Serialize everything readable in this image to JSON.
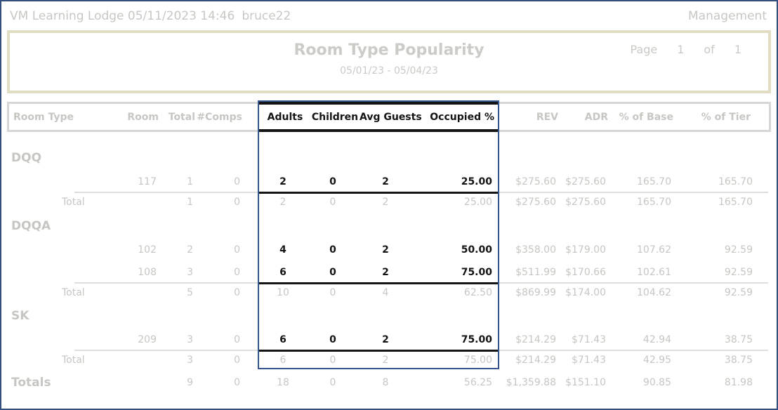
{
  "top_bar": {
    "property_and_time": "VM Learning Lodge 05/11/2023 14:46",
    "user": "bruce22",
    "menu": "Management"
  },
  "report_header": {
    "title": "Room Type Popularity",
    "date_range": "05/01/23 - 05/04/23",
    "page_label": "Page",
    "page_number": "1",
    "of_label": "of",
    "page_count": "1"
  },
  "colors": {
    "outer_border": "#31507E",
    "header_box_border": "#E0DDC3",
    "strip_border": "#D6D6D6",
    "muted_text": "#C6C6C2",
    "active_text": "#141414",
    "highlight_box_border": "#35538C"
  },
  "table": {
    "headers": {
      "room_type": "Room Type",
      "room": "Room",
      "total": "Total",
      "comps": "#Comps",
      "adults": "Adults",
      "children": "Children",
      "avg_guests": "Avg Guests",
      "occupied": "Occupied %",
      "rev": "REV",
      "adr": "ADR",
      "pct_base": "% of Base",
      "pct_tier": "% of Tier"
    },
    "highlighted_columns": [
      "Adults",
      "Children",
      "Avg Guests",
      "Occupied %"
    ],
    "groups": [
      {
        "name": "DQQ",
        "rows": [
          {
            "room": "117",
            "total": "1",
            "comps": "0",
            "adults": "2",
            "children": "0",
            "avg_guests": "2",
            "occupied": "25.00",
            "rev": "$275.60",
            "adr": "$275.60",
            "pct_base": "165.70",
            "pct_tier": "165.70"
          }
        ],
        "total": {
          "label": "Total",
          "total": "1",
          "comps": "0",
          "adults": "2",
          "children": "0",
          "avg_guests": "2",
          "occupied": "25.00",
          "rev": "$275.60",
          "adr": "$275.60",
          "pct_base": "165.70",
          "pct_tier": "165.70"
        }
      },
      {
        "name": "DQQA",
        "rows": [
          {
            "room": "102",
            "total": "2",
            "comps": "0",
            "adults": "4",
            "children": "0",
            "avg_guests": "2",
            "occupied": "50.00",
            "rev": "$358.00",
            "adr": "$179.00",
            "pct_base": "107.62",
            "pct_tier": "92.59"
          },
          {
            "room": "108",
            "total": "3",
            "comps": "0",
            "adults": "6",
            "children": "0",
            "avg_guests": "2",
            "occupied": "75.00",
            "rev": "$511.99",
            "adr": "$170.66",
            "pct_base": "102.61",
            "pct_tier": "92.59"
          }
        ],
        "total": {
          "label": "Total",
          "total": "5",
          "comps": "0",
          "adults": "10",
          "children": "0",
          "avg_guests": "4",
          "occupied": "62.50",
          "rev": "$869.99",
          "adr": "$174.00",
          "pct_base": "104.62",
          "pct_tier": "92.59"
        }
      },
      {
        "name": "SK",
        "rows": [
          {
            "room": "209",
            "total": "3",
            "comps": "0",
            "adults": "6",
            "children": "0",
            "avg_guests": "2",
            "occupied": "75.00",
            "rev": "$214.29",
            "adr": "$71.43",
            "pct_base": "42.94",
            "pct_tier": "38.75"
          }
        ],
        "total": {
          "label": "Total",
          "total": "3",
          "comps": "0",
          "adults": "6",
          "children": "0",
          "avg_guests": "2",
          "occupied": "75.00",
          "rev": "$214.29",
          "adr": "$71.43",
          "pct_base": "42.95",
          "pct_tier": "38.75"
        }
      }
    ],
    "grand_total": {
      "label": "Totals",
      "total": "9",
      "comps": "0",
      "adults": "18",
      "children": "0",
      "avg_guests": "8",
      "occupied": "56.25",
      "rev": "$1,359.88",
      "adr": "$151.10",
      "pct_base": "90.85",
      "pct_tier": "81.98"
    }
  }
}
